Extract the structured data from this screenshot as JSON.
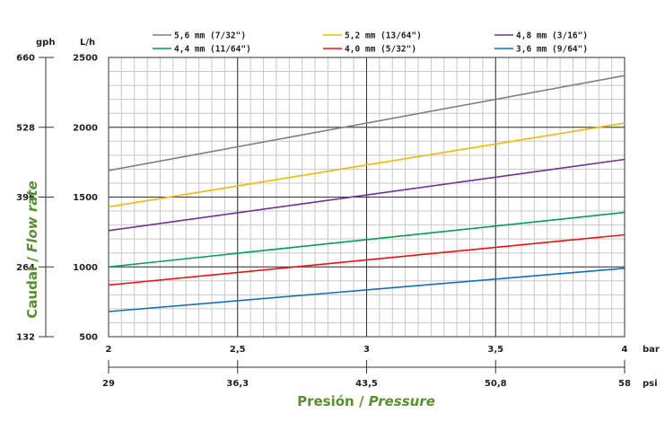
{
  "chart_data": {
    "type": "line",
    "xlabel": {
      "normal": "Presión / ",
      "italic": "Pressure"
    },
    "ylabel": {
      "normal": "Caudal / ",
      "italic": "Flow rate"
    },
    "x_unit": "bar",
    "x2_unit": "psi",
    "y_unit": "L/h",
    "y2_unit": "gph",
    "xlim": [
      2,
      4
    ],
    "ylim": [
      500,
      2500
    ],
    "x_ticks": [
      "2",
      "2,5",
      "3",
      "3,5",
      "4"
    ],
    "x_tick_values": [
      2,
      2.5,
      3,
      3.5,
      4
    ],
    "x2_ticks": [
      "29",
      "36,3",
      "43,5",
      "50,8",
      "58"
    ],
    "y_ticks": [
      "500",
      "1000",
      "1500",
      "2000",
      "2500"
    ],
    "y_tick_values": [
      500,
      1000,
      1500,
      2000,
      2500
    ],
    "y2_ticks": [
      "132",
      "264",
      "396",
      "528",
      "660"
    ],
    "grid": true,
    "legend_position": "top",
    "x": [
      2,
      4
    ],
    "series": [
      {
        "name": "5,6 mm (7/32\")",
        "color": "#808080",
        "values": [
          1690,
          2370
        ]
      },
      {
        "name": "5,2 mm (13/64\")",
        "color": "#f5b800",
        "values": [
          1430,
          2030
        ]
      },
      {
        "name": "4,8 mm (3/16\")",
        "color": "#7030a0",
        "values": [
          1260,
          1770
        ]
      },
      {
        "name": "4,4 mm (11/64\")",
        "color": "#00a050",
        "values": [
          1000,
          1390
        ]
      },
      {
        "name": "4,0 mm (5/32\")",
        "color": "#ee1111",
        "values": [
          870,
          1230
        ]
      },
      {
        "name": "3,6 mm (9/64\")",
        "color": "#1070c0",
        "values": [
          680,
          990
        ]
      }
    ]
  }
}
